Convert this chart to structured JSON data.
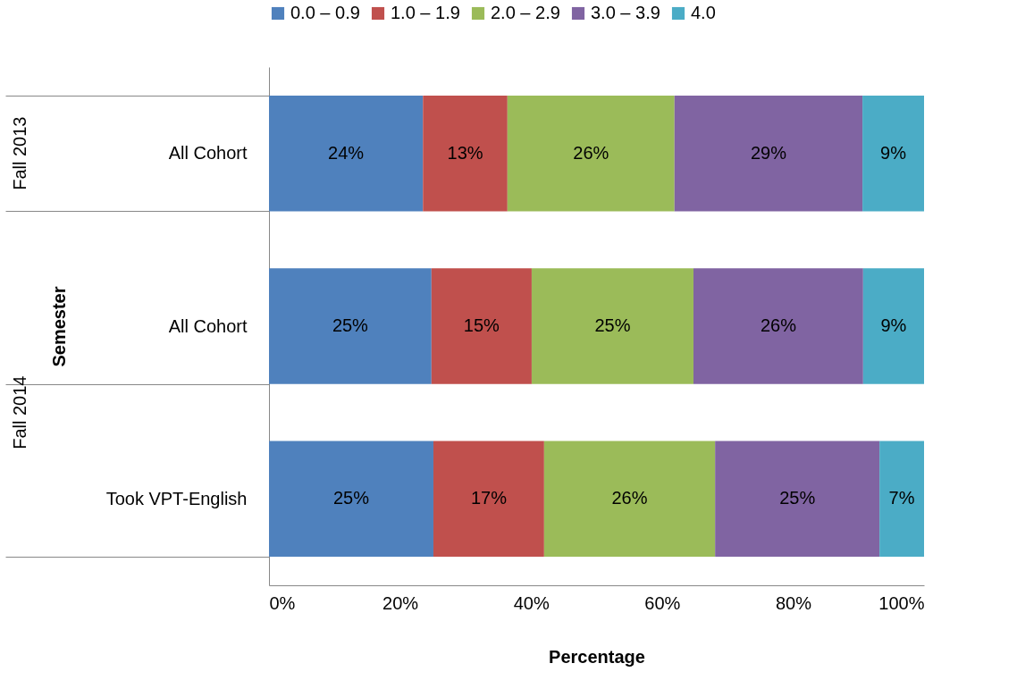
{
  "chart_data": {
    "type": "bar",
    "orientation": "horizontal",
    "stacked": true,
    "xlabel": "Percentage",
    "ylabel": "Semester",
    "categories": [
      "All Cohort",
      "All Cohort",
      "Took VPT-English"
    ],
    "annotations": [
      "Fall 2013",
      "Fall 2014"
    ],
    "series": [
      {
        "name": "0.0 – 0.9",
        "color": "#4f81bd",
        "values": [
          23.5,
          24.8,
          25.1
        ],
        "value_labels": [
          "24%",
          "25%",
          "25%"
        ]
      },
      {
        "name": "1.0 – 1.9",
        "color": "#c0504d",
        "values": [
          12.9,
          15.3,
          16.9
        ],
        "value_labels": [
          "13%",
          "15%",
          "17%"
        ]
      },
      {
        "name": "2.0 – 2.9",
        "color": "#9bbb59",
        "values": [
          25.5,
          24.7,
          26.1
        ],
        "value_labels": [
          "26%",
          "25%",
          "26%"
        ]
      },
      {
        "name": "3.0 – 3.9",
        "color": "#8064a2",
        "values": [
          28.7,
          25.9,
          25.1
        ],
        "value_labels": [
          "29%",
          "26%",
          "25%"
        ]
      },
      {
        "name": "4.0",
        "color": "#4bacc6",
        "values": [
          9.4,
          9.3,
          6.8
        ],
        "value_labels": [
          "9%",
          "9%",
          "7%"
        ]
      }
    ],
    "xlim": [
      0,
      100
    ],
    "xticks": [
      {
        "value": 0,
        "label": "0%"
      },
      {
        "value": 20,
        "label": "20%"
      },
      {
        "value": 40,
        "label": "40%"
      },
      {
        "value": 60,
        "label": "60%"
      },
      {
        "value": 80,
        "label": "80%"
      },
      {
        "value": 100,
        "label": "100%"
      }
    ],
    "legend": "top",
    "grid": false
  }
}
